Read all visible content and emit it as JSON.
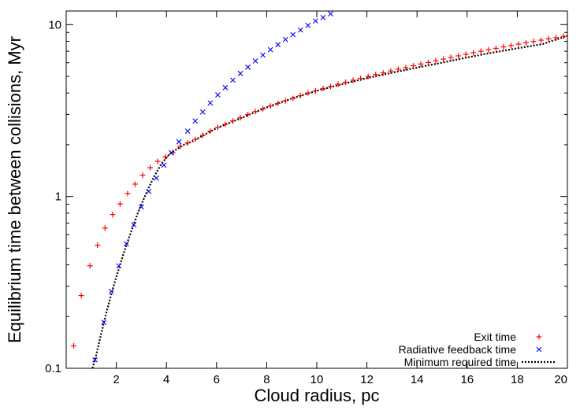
{
  "chart_data": {
    "type": "scatter",
    "xlabel": "Cloud radius, pc",
    "ylabel": "Equilibrium time between collisions, Myr",
    "xlim": [
      0,
      20
    ],
    "ylim": [
      0.1,
      12
    ],
    "y_scale": "log",
    "grid": false,
    "legend_position": "bottom-right",
    "x_ticks": [
      2,
      4,
      6,
      8,
      10,
      12,
      14,
      16,
      18,
      20
    ],
    "x_tick_labels": [
      "2",
      "4",
      "6",
      "8",
      "10",
      "12",
      "14",
      "16",
      "18",
      "20"
    ],
    "y_ticks": [
      0.1,
      1,
      10
    ],
    "y_tick_labels": [
      "0.1",
      "1",
      "10"
    ],
    "series": [
      {
        "name": "Exit time",
        "marker": "plus",
        "color": "#ff0000",
        "x": [
          0.3,
          0.6,
          0.95,
          1.25,
          1.55,
          1.85,
          2.15,
          2.45,
          2.75,
          3.05,
          3.35,
          3.65,
          3.95,
          4.25,
          4.55,
          4.85,
          5.15,
          5.45,
          5.75,
          6.05,
          6.35,
          6.65,
          6.95,
          7.25,
          7.55,
          7.85,
          8.15,
          8.45,
          8.75,
          9.05,
          9.35,
          9.65,
          9.95,
          10.25,
          10.55,
          10.85,
          11.15,
          11.45,
          11.75,
          12.05,
          12.35,
          12.65,
          12.95,
          13.25,
          13.55,
          13.85,
          14.15,
          14.45,
          14.75,
          15.05,
          15.35,
          15.65,
          15.95,
          16.25,
          16.55,
          16.85,
          17.15,
          17.45,
          17.75,
          18.05,
          18.35,
          18.65,
          18.95,
          19.25,
          19.55,
          19.85
        ],
        "y": [
          0.135,
          0.265,
          0.395,
          0.52,
          0.655,
          0.785,
          0.905,
          1.04,
          1.18,
          1.33,
          1.47,
          1.6,
          1.7,
          1.8,
          1.96,
          2.05,
          2.15,
          2.27,
          2.4,
          2.52,
          2.63,
          2.75,
          2.87,
          3.0,
          3.12,
          3.24,
          3.36,
          3.48,
          3.6,
          3.72,
          3.86,
          4.0,
          4.12,
          4.25,
          4.37,
          4.5,
          4.62,
          4.75,
          4.87,
          5.0,
          5.12,
          5.24,
          5.37,
          5.5,
          5.62,
          5.76,
          5.9,
          6.02,
          6.16,
          6.3,
          6.44,
          6.58,
          6.72,
          6.86,
          7.0,
          7.14,
          7.28,
          7.42,
          7.56,
          7.7,
          7.84,
          7.98,
          8.12,
          8.26,
          8.4,
          8.55
        ]
      },
      {
        "name": "Radiative feedback time",
        "marker": "cross",
        "color": "#0000ff",
        "x": [
          1.15,
          1.5,
          1.8,
          2.1,
          2.4,
          2.7,
          3.0,
          3.3,
          3.6,
          3.9,
          4.2,
          4.5,
          4.85,
          5.15,
          5.45,
          5.75,
          6.05,
          6.35,
          6.65,
          6.95,
          7.25,
          7.55,
          7.85,
          8.15,
          8.45,
          8.75,
          9.05,
          9.35,
          9.65,
          9.95,
          10.25,
          10.55
        ],
        "y": [
          0.112,
          0.185,
          0.28,
          0.395,
          0.53,
          0.685,
          0.87,
          1.07,
          1.28,
          1.52,
          1.8,
          2.08,
          2.4,
          2.75,
          3.1,
          3.5,
          3.9,
          4.3,
          4.75,
          5.2,
          5.65,
          6.15,
          6.65,
          7.15,
          7.65,
          8.2,
          8.75,
          9.3,
          9.9,
          10.5,
          11.0,
          11.55
        ]
      },
      {
        "name": "Minimum required time",
        "marker": "dotted-line",
        "color": "#000000",
        "x": [
          1.05,
          1.2,
          1.4,
          1.6,
          1.8,
          2.0,
          2.3,
          2.6,
          2.9,
          3.2,
          3.5,
          3.8,
          4.1,
          4.4,
          4.7,
          5.0,
          6.0,
          7.0,
          8.0,
          9.0,
          10.0,
          11.0,
          12.0,
          13.0,
          14.0,
          15.0,
          16.0,
          17.0,
          18.0,
          19.0,
          20.0
        ],
        "y": [
          0.1,
          0.12,
          0.16,
          0.21,
          0.27,
          0.34,
          0.47,
          0.63,
          0.83,
          1.05,
          1.3,
          1.55,
          1.75,
          1.88,
          2.0,
          2.08,
          2.5,
          2.87,
          3.3,
          3.72,
          4.12,
          4.5,
          4.88,
          5.25,
          5.62,
          6.0,
          6.44,
          6.86,
          7.28,
          7.7,
          8.6
        ]
      }
    ]
  }
}
